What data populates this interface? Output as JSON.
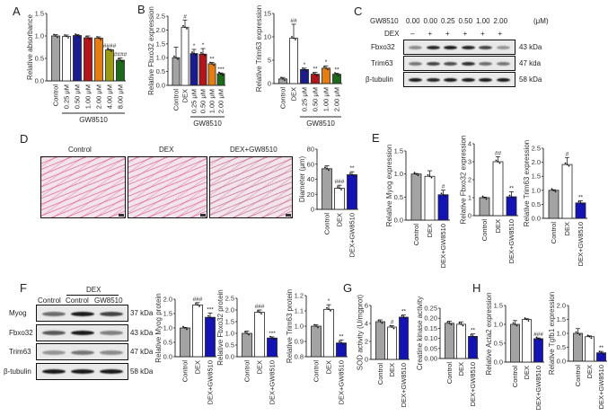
{
  "panels": {
    "A": "A",
    "B": "B",
    "C": "C",
    "D": "D",
    "E": "E",
    "F": "F",
    "G": "G",
    "H": "H"
  },
  "blotC": {
    "header_label": "GW8510",
    "dex_label": "DEX",
    "unit": "(μM)",
    "doses": [
      "0.00",
      "0.00",
      "0.25",
      "0.50",
      "1.00",
      "2.00"
    ],
    "dex": [
      "–",
      "+",
      "+",
      "+",
      "+",
      "+"
    ],
    "rows": [
      {
        "name": "Fbxo32",
        "kda": "43 kDa"
      },
      {
        "name": "Trim63",
        "kda": "47 kda"
      },
      {
        "name": "β-tubulin",
        "kda": "58 kDa"
      }
    ]
  },
  "micrographs": {
    "labels": [
      "Control",
      "DEX",
      "DEX+GW8510"
    ]
  },
  "blotF": {
    "dex_label": "DEX",
    "lanes": [
      "Control",
      "Control",
      "GW8510"
    ],
    "rows": [
      {
        "name": "Myog",
        "kda": "37 kDa"
      },
      {
        "name": "Fbxo32",
        "kda": "43 kDa"
      },
      {
        "name": "Trim63",
        "kda": "47 kDa"
      },
      {
        "name": "β-tubulin",
        "kda": "58 kDa"
      }
    ]
  },
  "colors": {
    "gray": "#a3a3a3",
    "white": "#ffffff",
    "navy": "#1c1c8e",
    "red": "#b3151a",
    "orange": "#e57d12",
    "olive": "#9c9c14",
    "green": "#1b6b1b",
    "blue": "#1414b4"
  },
  "chart_data": [
    {
      "id": "A",
      "type": "bar",
      "ylabel": "Relative absorbance",
      "ylim": [
        0,
        1.5
      ],
      "yticks": [
        "0.0",
        "0.5",
        "1.0",
        "1.5"
      ],
      "categories": [
        "Control",
        "0.25 μM",
        "0.50 μM",
        "1.00 μM",
        "2.00 μM",
        "4.00 μM",
        "8.00 μM"
      ],
      "values": [
        1.0,
        0.99,
        1.01,
        0.96,
        0.95,
        0.69,
        0.46
      ],
      "errors": [
        0.03,
        0.03,
        0.02,
        0.04,
        0.03,
        0.01,
        0.05
      ],
      "annotations": [
        "",
        "",
        "",
        "",
        "",
        "####",
        "####"
      ],
      "colors": [
        "gray",
        "white",
        "navy",
        "red",
        "orange",
        "olive",
        "green"
      ],
      "group": {
        "label": "GW8510",
        "from": 1,
        "to": 6
      }
    },
    {
      "id": "B1",
      "type": "bar",
      "ylabel": "Relative Fbxo32 expression",
      "ylim": [
        0,
        2.5
      ],
      "yticks": [
        "0.0",
        "0.5",
        "1.0",
        "1.5",
        "2.0",
        "2.5"
      ],
      "categories": [
        "Control",
        "DEX",
        "0.25 μM",
        "0.50 μM",
        "1.00 μM",
        "2.00 μM"
      ],
      "values": [
        1.0,
        2.1,
        1.15,
        1.13,
        0.78,
        0.42
      ],
      "errors": [
        0.38,
        0.26,
        0.15,
        0.2,
        0.05,
        0.03
      ],
      "annotations": [
        "",
        "#",
        "*",
        "*",
        "**",
        "***"
      ],
      "colors": [
        "gray",
        "white",
        "navy",
        "red",
        "orange",
        "green"
      ],
      "group": {
        "label": "GW8510",
        "from": 2,
        "to": 5
      }
    },
    {
      "id": "B2",
      "type": "bar",
      "ylabel": "Relative Trim63 expression",
      "ylim": [
        0,
        15
      ],
      "yticks": [
        "0",
        "5",
        "10",
        "15"
      ],
      "categories": [
        "Control",
        "DEX",
        "0.25 μM",
        "0.50 μM",
        "1.00 μM",
        "2.00 μM"
      ],
      "values": [
        1.0,
        9.7,
        3.0,
        2.0,
        3.3,
        2.0
      ],
      "errors": [
        0.3,
        3.0,
        0.3,
        0.4,
        0.5,
        0.2
      ],
      "annotations": [
        "",
        "##",
        "*",
        "**",
        "*",
        "**"
      ],
      "colors": [
        "gray",
        "white",
        "navy",
        "red",
        "orange",
        "green"
      ],
      "group": {
        "label": "GW8510",
        "from": 2,
        "to": 5
      }
    },
    {
      "id": "D",
      "type": "bar",
      "ylabel": "Diameter (μm)",
      "ylim": [
        0,
        80
      ],
      "yticks": [
        "0",
        "20",
        "40",
        "60",
        "80"
      ],
      "categories": [
        "Control",
        "DEX",
        "DEX+GW8510"
      ],
      "values": [
        54,
        28,
        46
      ],
      "errors": [
        4,
        4,
        4
      ],
      "annotations": [
        "",
        "###",
        "**"
      ],
      "colors": [
        "gray",
        "white",
        "blue"
      ]
    },
    {
      "id": "E1",
      "type": "bar",
      "ylabel": "Relative Myog expression",
      "ylim": [
        0,
        1.5
      ],
      "yticks": [
        "0.0",
        "0.5",
        "1.0",
        "1.5"
      ],
      "categories": [
        "Control",
        "DEX",
        "DEX+GW8510"
      ],
      "values": [
        1.0,
        0.95,
        0.55
      ],
      "errors": [
        0.01,
        0.12,
        0.1
      ],
      "annotations": [
        "",
        "",
        "#"
      ],
      "colors": [
        "gray",
        "white",
        "blue"
      ]
    },
    {
      "id": "E2",
      "type": "bar",
      "ylabel": "Relative Fbxo32 expression",
      "ylim": [
        0,
        4
      ],
      "yticks": [
        "0",
        "1",
        "2",
        "3",
        "4"
      ],
      "categories": [
        "Control",
        "DEX",
        "DEX+GW8510"
      ],
      "values": [
        1.0,
        3.0,
        1.05
      ],
      "errors": [
        0.03,
        0.28,
        0.28
      ],
      "annotations": [
        "",
        "##",
        "**"
      ],
      "colors": [
        "gray",
        "white",
        "blue"
      ]
    },
    {
      "id": "E3",
      "type": "bar",
      "ylabel": "Relative Trim63 expression",
      "ylim": [
        0,
        2.5
      ],
      "yticks": [
        "0.0",
        "0.5",
        "1.0",
        "1.5",
        "2.0",
        "2.5"
      ],
      "categories": [
        "Control",
        "DEX",
        "DEX+GW8510"
      ],
      "values": [
        1.0,
        1.92,
        0.55
      ],
      "errors": [
        0.02,
        0.25,
        0.08
      ],
      "annotations": [
        "",
        "#",
        "**"
      ],
      "colors": [
        "gray",
        "white",
        "blue"
      ]
    },
    {
      "id": "F1",
      "type": "bar",
      "ylabel": "Relative Myog protein",
      "ylim": [
        0,
        2.0
      ],
      "yticks": [
        "0.0",
        "0.5",
        "1.0",
        "1.5",
        "2.0"
      ],
      "categories": [
        "Control",
        "DEX",
        "DEX+GW8510"
      ],
      "values": [
        1.0,
        1.8,
        1.37
      ],
      "errors": [
        0.02,
        0.08,
        0.15
      ],
      "annotations": [
        "",
        "###",
        "***"
      ],
      "colors": [
        "gray",
        "white",
        "blue"
      ]
    },
    {
      "id": "F2",
      "type": "bar",
      "ylabel": "Relative Fbxo32 protein",
      "ylim": [
        0,
        2.5
      ],
      "yticks": [
        "0.0",
        "0.5",
        "1.0",
        "1.5",
        "2.0",
        "2.5"
      ],
      "categories": [
        "Control",
        "DEX",
        "DEX+GW8510"
      ],
      "values": [
        1.0,
        1.9,
        0.8
      ],
      "errors": [
        0.1,
        0.1,
        0.05
      ],
      "annotations": [
        "",
        "###",
        "***"
      ],
      "colors": [
        "gray",
        "white",
        "blue"
      ]
    },
    {
      "id": "F3",
      "type": "bar",
      "ylabel": "Relative Trim63 protein",
      "ylim": [
        0.8,
        1.2
      ],
      "yticks": [
        "0.8",
        "0.9",
        "1.0",
        "1.1",
        "1.2"
      ],
      "categories": [
        "Control",
        "DEX",
        "DEX+GW8510"
      ],
      "values": [
        1.0,
        1.11,
        0.89
      ],
      "errors": [
        0.01,
        0.03,
        0.02
      ],
      "annotations": [
        "",
        "*",
        "**"
      ],
      "colors": [
        "gray",
        "white",
        "blue"
      ]
    },
    {
      "id": "G1",
      "type": "bar",
      "ylabel": "SOD activity (U/mgprot)",
      "ylim": [
        0,
        6
      ],
      "yticks": [
        "0",
        "2",
        "4",
        "6"
      ],
      "categories": [
        "Control",
        "DEX",
        "DEX+GW8510"
      ],
      "values": [
        4.2,
        3.6,
        4.7
      ],
      "errors": [
        0.2,
        0.15,
        0.25
      ],
      "annotations": [
        "",
        "#",
        "**"
      ],
      "colors": [
        "gray",
        "white",
        "blue"
      ]
    },
    {
      "id": "G2",
      "type": "bar",
      "ylabel": "Creatine kinase activity",
      "ylim": [
        0,
        0.25
      ],
      "yticks": [
        "0.00",
        "0.05",
        "0.10",
        "0.15",
        "0.20",
        "0.25"
      ],
      "categories": [
        "Control",
        "DEX",
        "DEX+GW8510"
      ],
      "values": [
        0.175,
        0.17,
        0.11
      ],
      "errors": [
        0.01,
        0.012,
        0.012
      ],
      "annotations": [
        "",
        "",
        "**"
      ],
      "colors": [
        "gray",
        "white",
        "blue"
      ]
    },
    {
      "id": "H1",
      "type": "bar",
      "ylabel": "Relative Acta2 expression",
      "ylim": [
        0,
        1.5
      ],
      "yticks": [
        "0.0",
        "0.5",
        "1.0",
        "1.5"
      ],
      "categories": [
        "Control",
        "DEX",
        "DEX+GW8510"
      ],
      "values": [
        1.0,
        1.13,
        0.62
      ],
      "errors": [
        0.1,
        0.02,
        0.02
      ],
      "annotations": [
        "",
        "",
        "###"
      ],
      "colors": [
        "gray",
        "white",
        "blue"
      ]
    },
    {
      "id": "H2",
      "type": "bar",
      "ylabel": "Relative Tgfb1 expression",
      "ylim": [
        0,
        2.0
      ],
      "yticks": [
        "0.0",
        "0.5",
        "1.0",
        "1.5",
        "2.0"
      ],
      "categories": [
        "Control",
        "DEX",
        "DEX+GW8510"
      ],
      "values": [
        1.0,
        0.88,
        0.3
      ],
      "errors": [
        0.17,
        0.03,
        0.05
      ],
      "annotations": [
        "",
        "",
        "**"
      ],
      "colors": [
        "gray",
        "white",
        "blue"
      ]
    }
  ]
}
